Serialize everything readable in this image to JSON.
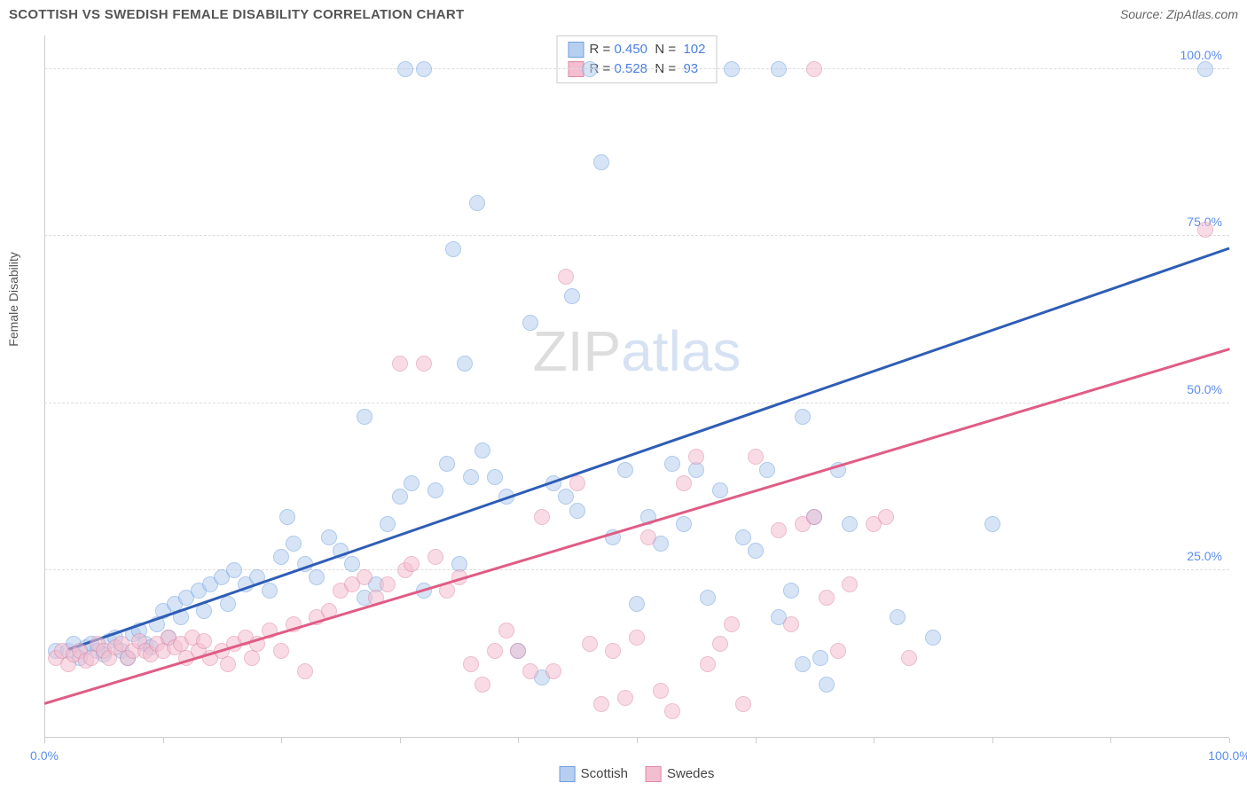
{
  "title": "SCOTTISH VS SWEDISH FEMALE DISABILITY CORRELATION CHART",
  "source": "Source: ZipAtlas.com",
  "ylabel": "Female Disability",
  "watermark": {
    "part1": "ZIP",
    "part2": "atlas"
  },
  "chart": {
    "type": "scatter",
    "xlim": [
      0,
      100
    ],
    "ylim": [
      0,
      105
    ],
    "background_color": "#ffffff",
    "grid_color": "#dddddd",
    "axis_color": "#cccccc",
    "tick_color": "#cccccc",
    "label_color": "#5b8def",
    "marker_radius": 9,
    "marker_opacity": 0.55,
    "x_ticks": [
      0,
      10,
      20,
      30,
      40,
      50,
      60,
      70,
      80,
      90,
      100
    ],
    "x_tick_labels": [
      {
        "pos": 0,
        "text": "0.0%"
      },
      {
        "pos": 100,
        "text": "100.0%"
      }
    ],
    "y_gridlines": [
      25,
      50,
      75,
      100
    ],
    "y_tick_labels": [
      {
        "pos": 25,
        "text": "25.0%"
      },
      {
        "pos": 50,
        "text": "50.0%"
      },
      {
        "pos": 75,
        "text": "75.0%"
      },
      {
        "pos": 100,
        "text": "100.0%"
      }
    ],
    "series": [
      {
        "name": "Scottish",
        "fill_color": "#b6cff0",
        "stroke_color": "#6f9fe0",
        "line_color": "#2e5db5",
        "R": "0.450",
        "N": "102",
        "trend": {
          "x1": 2,
          "y1": 13,
          "x2": 100,
          "y2": 73
        },
        "points": [
          [
            1,
            13
          ],
          [
            2,
            13
          ],
          [
            2.5,
            14
          ],
          [
            3,
            12
          ],
          [
            3.5,
            13.5
          ],
          [
            4,
            14
          ],
          [
            4.5,
            13
          ],
          [
            5,
            12.5
          ],
          [
            5.5,
            14.5
          ],
          [
            6,
            15
          ],
          [
            6.5,
            13
          ],
          [
            7,
            12
          ],
          [
            7.5,
            15.5
          ],
          [
            8,
            16
          ],
          [
            8.5,
            14
          ],
          [
            9,
            13.5
          ],
          [
            9.5,
            17
          ],
          [
            10,
            19
          ],
          [
            10.5,
            15
          ],
          [
            11,
            20
          ],
          [
            11.5,
            18
          ],
          [
            12,
            21
          ],
          [
            13,
            22
          ],
          [
            13.5,
            19
          ],
          [
            14,
            23
          ],
          [
            15,
            24
          ],
          [
            15.5,
            20
          ],
          [
            16,
            25
          ],
          [
            17,
            23
          ],
          [
            18,
            24
          ],
          [
            19,
            22
          ],
          [
            20,
            27
          ],
          [
            20.5,
            33
          ],
          [
            21,
            29
          ],
          [
            22,
            26
          ],
          [
            23,
            24
          ],
          [
            24,
            30
          ],
          [
            25,
            28
          ],
          [
            26,
            26
          ],
          [
            27,
            21
          ],
          [
            27,
            48
          ],
          [
            28,
            23
          ],
          [
            29,
            32
          ],
          [
            30,
            36
          ],
          [
            30.5,
            100
          ],
          [
            31,
            38
          ],
          [
            32,
            22
          ],
          [
            32,
            100
          ],
          [
            33,
            37
          ],
          [
            34,
            41
          ],
          [
            34.5,
            73
          ],
          [
            35,
            26
          ],
          [
            35.5,
            56
          ],
          [
            36,
            39
          ],
          [
            36.5,
            80
          ],
          [
            37,
            43
          ],
          [
            38,
            39
          ],
          [
            39,
            36
          ],
          [
            40,
            13
          ],
          [
            41,
            62
          ],
          [
            42,
            9
          ],
          [
            43,
            38
          ],
          [
            44,
            36
          ],
          [
            44.5,
            66
          ],
          [
            45,
            34
          ],
          [
            46,
            100
          ],
          [
            47,
            86
          ],
          [
            48,
            30
          ],
          [
            49,
            40
          ],
          [
            50,
            20
          ],
          [
            51,
            33
          ],
          [
            52,
            29
          ],
          [
            53,
            41
          ],
          [
            54,
            32
          ],
          [
            55,
            40
          ],
          [
            56,
            21
          ],
          [
            57,
            37
          ],
          [
            58,
            100
          ],
          [
            59,
            30
          ],
          [
            60,
            28
          ],
          [
            61,
            40
          ],
          [
            62,
            18
          ],
          [
            63,
            22
          ],
          [
            64,
            48
          ],
          [
            65,
            33
          ],
          [
            66,
            8
          ],
          [
            67,
            40
          ],
          [
            68,
            32
          ],
          [
            72,
            18
          ],
          [
            75,
            15
          ],
          [
            80,
            32
          ],
          [
            62,
            100
          ],
          [
            64,
            11
          ],
          [
            65.5,
            12
          ],
          [
            98,
            100
          ]
        ]
      },
      {
        "name": "Swedes",
        "fill_color": "#f3bed0",
        "stroke_color": "#e088a5",
        "line_color": "#e05c85",
        "R": "0.528",
        "N": "93",
        "trend": {
          "x1": 0,
          "y1": 5,
          "x2": 100,
          "y2": 58
        },
        "points": [
          [
            1,
            12
          ],
          [
            1.5,
            13
          ],
          [
            2,
            11
          ],
          [
            2.5,
            12.5
          ],
          [
            3,
            13
          ],
          [
            3.5,
            11.5
          ],
          [
            4,
            12
          ],
          [
            4.5,
            14
          ],
          [
            5,
            13
          ],
          [
            5.5,
            12
          ],
          [
            6,
            13.5
          ],
          [
            6.5,
            14
          ],
          [
            7,
            12
          ],
          [
            7.5,
            13
          ],
          [
            8,
            14.5
          ],
          [
            8.5,
            13
          ],
          [
            9,
            12.5
          ],
          [
            9.5,
            14
          ],
          [
            10,
            13
          ],
          [
            10.5,
            15
          ],
          [
            11,
            13.5
          ],
          [
            11.5,
            14
          ],
          [
            12,
            12
          ],
          [
            12.5,
            15
          ],
          [
            13,
            13
          ],
          [
            13.5,
            14.5
          ],
          [
            14,
            12
          ],
          [
            15,
            13
          ],
          [
            15.5,
            11
          ],
          [
            16,
            14
          ],
          [
            17,
            15
          ],
          [
            17.5,
            12
          ],
          [
            18,
            14
          ],
          [
            19,
            16
          ],
          [
            20,
            13
          ],
          [
            21,
            17
          ],
          [
            22,
            10
          ],
          [
            23,
            18
          ],
          [
            24,
            19
          ],
          [
            25,
            22
          ],
          [
            26,
            23
          ],
          [
            27,
            24
          ],
          [
            28,
            21
          ],
          [
            29,
            23
          ],
          [
            30,
            56
          ],
          [
            30.5,
            25
          ],
          [
            31,
            26
          ],
          [
            32,
            56
          ],
          [
            33,
            27
          ],
          [
            34,
            22
          ],
          [
            35,
            24
          ],
          [
            36,
            11
          ],
          [
            37,
            8
          ],
          [
            38,
            13
          ],
          [
            39,
            16
          ],
          [
            40,
            13
          ],
          [
            41,
            10
          ],
          [
            42,
            33
          ],
          [
            43,
            10
          ],
          [
            44,
            69
          ],
          [
            45,
            38
          ],
          [
            46,
            14
          ],
          [
            47,
            5
          ],
          [
            48,
            13
          ],
          [
            49,
            6
          ],
          [
            50,
            15
          ],
          [
            51,
            30
          ],
          [
            52,
            7
          ],
          [
            53,
            4
          ],
          [
            54,
            38
          ],
          [
            55,
            42
          ],
          [
            56,
            11
          ],
          [
            57,
            14
          ],
          [
            58,
            17
          ],
          [
            59,
            5
          ],
          [
            60,
            42
          ],
          [
            62,
            31
          ],
          [
            63,
            17
          ],
          [
            64,
            32
          ],
          [
            65,
            33
          ],
          [
            66,
            21
          ],
          [
            67,
            13
          ],
          [
            68,
            23
          ],
          [
            70,
            32
          ],
          [
            71,
            33
          ],
          [
            73,
            12
          ],
          [
            65,
            100
          ],
          [
            98,
            76
          ]
        ]
      }
    ],
    "legend_bottom": [
      {
        "label": "Scottish",
        "fill": "#b6cff0",
        "stroke": "#6f9fe0"
      },
      {
        "label": "Swedes",
        "fill": "#f3bed0",
        "stroke": "#e088a5"
      }
    ]
  }
}
